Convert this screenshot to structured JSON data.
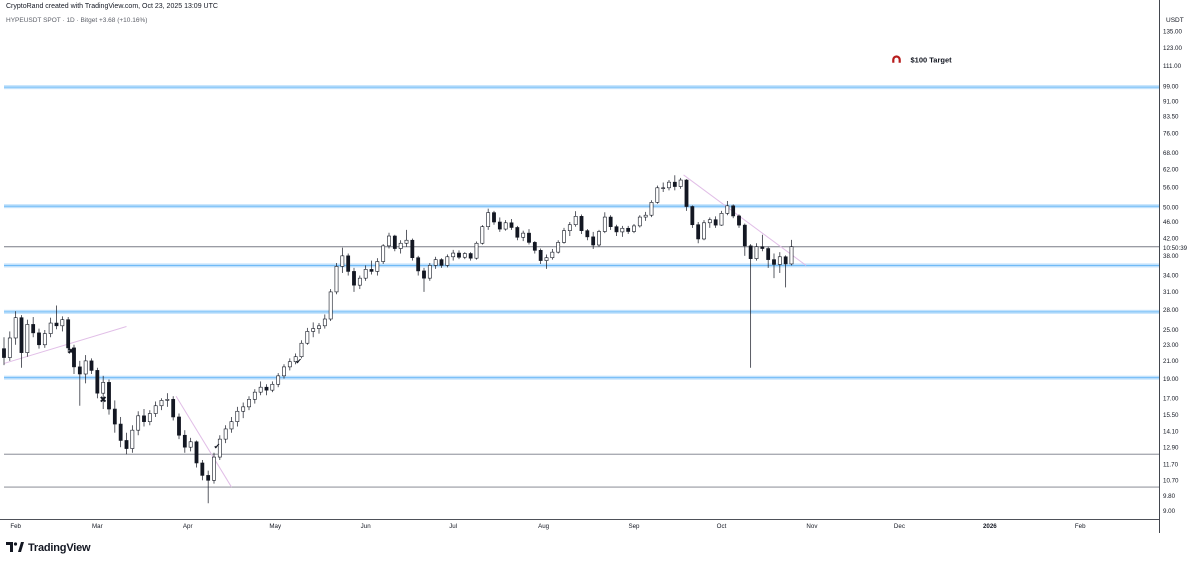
{
  "header": {
    "credit": "CryptoRand created with TradingView.com, Oct 23, 2025 13:09 UTC",
    "symbol": "HYPEUSDT SPOT · 1D · Bitget",
    "change": "+3.68 (+10.16%)"
  },
  "brand": {
    "name": "TradingView"
  },
  "colors": {
    "candle": "#131722",
    "support_band": "#90caf9",
    "trendline": "#e1bee7",
    "dark_line": "#787b86",
    "target_marker": "#b71c1c"
  },
  "chart_data": {
    "type": "candlestick",
    "currency": "USDT",
    "y_scale": "log",
    "ylim": [
      8.6,
      154
    ],
    "x_range": [
      "2025-01-28",
      "2026-02-28"
    ],
    "price_axis_ticks": [
      9.0,
      9.8,
      10.7,
      11.7,
      12.9,
      14.1,
      15.5,
      17.0,
      19.0,
      21.0,
      23.0,
      25.0,
      28.0,
      31.0,
      34.0,
      38.0,
      42.0,
      46.0,
      50.0,
      56.0,
      62.0,
      68.0,
      76.0,
      83.5,
      91.0,
      99.0,
      111.0,
      123.0,
      135.0
    ],
    "price_axis_labels": [
      "9.00",
      "9.80",
      "10.70",
      "11.70",
      "12.90",
      "14.10",
      "15.50",
      "17.00",
      "19.00",
      "21.00",
      "23.00",
      "25.00",
      "28.00",
      "31.00",
      "34.00",
      "38.00",
      "42.00",
      "46.00",
      "50.00",
      "56.00",
      "62.00",
      "68.00",
      "76.00",
      "83.50",
      "91.00",
      "99.00",
      "111.00",
      "123.00",
      "135.00"
    ],
    "time_axis": [
      {
        "label": "Feb",
        "date": "2025-02-01",
        "bold": false
      },
      {
        "label": "Mar",
        "date": "2025-03-01",
        "bold": false
      },
      {
        "label": "Apr",
        "date": "2025-04-01",
        "bold": false
      },
      {
        "label": "May",
        "date": "2025-05-01",
        "bold": false
      },
      {
        "label": "Jun",
        "date": "2025-06-01",
        "bold": false
      },
      {
        "label": "Jul",
        "date": "2025-07-01",
        "bold": false
      },
      {
        "label": "Aug",
        "date": "2025-08-01",
        "bold": false
      },
      {
        "label": "Sep",
        "date": "2025-09-01",
        "bold": false
      },
      {
        "label": "Oct",
        "date": "2025-10-01",
        "bold": false
      },
      {
        "label": "Nov",
        "date": "2025-11-01",
        "bold": false
      },
      {
        "label": "Dec",
        "date": "2025-12-01",
        "bold": false
      },
      {
        "label": "2026",
        "date": "2026-01-01",
        "bold": true
      },
      {
        "label": "Feb",
        "date": "2026-02-01",
        "bold": false
      }
    ],
    "last_price": {
      "value": 40.0,
      "label": "10:50:39"
    },
    "horizontal_levels": [
      {
        "price": 98.5,
        "style": "band"
      },
      {
        "price": 50.3,
        "style": "band"
      },
      {
        "price": 40.0,
        "style": "dark"
      },
      {
        "price": 36.0,
        "style": "band"
      },
      {
        "price": 27.7,
        "style": "band"
      },
      {
        "price": 19.1,
        "style": "band"
      },
      {
        "price": 12.4,
        "style": "dark"
      },
      {
        "price": 10.3,
        "style": "dark"
      }
    ],
    "trendlines": [
      {
        "from": [
          "2025-01-28",
          20.7
        ],
        "to": [
          "2025-03-11",
          25.5
        ],
        "color": "#e1bee7"
      },
      {
        "from": [
          "2025-03-28",
          17.2
        ],
        "to": [
          "2025-04-16",
          10.3
        ],
        "color": "#e1bee7"
      },
      {
        "from": [
          "2025-09-18",
          60.0
        ],
        "to": [
          "2025-10-30",
          36.0
        ],
        "color": "#e1bee7"
      }
    ],
    "annotations": [
      {
        "type": "cross",
        "date": "2025-02-20",
        "price": 22.2
      },
      {
        "type": "cross",
        "date": "2025-03-03",
        "price": 16.9
      },
      {
        "type": "check",
        "date": "2025-05-09",
        "price": 21.0
      },
      {
        "type": "check",
        "date": "2025-04-11",
        "price": 13.0
      },
      {
        "type": "target",
        "date": "2025-11-30",
        "price": 115,
        "text": "$100 Target"
      }
    ],
    "candles": [
      [
        "2025-01-28",
        22.5,
        24.0,
        20.5,
        21.4
      ],
      [
        "2025-01-30",
        21.4,
        24.8,
        21.0,
        23.9
      ],
      [
        "2025-02-01",
        23.9,
        27.8,
        23.0,
        26.8
      ],
      [
        "2025-02-03",
        26.8,
        27.2,
        20.2,
        22.0
      ],
      [
        "2025-02-05",
        22.0,
        26.5,
        21.5,
        25.8
      ],
      [
        "2025-02-07",
        25.8,
        26.9,
        24.0,
        24.6
      ],
      [
        "2025-02-09",
        24.6,
        25.2,
        22.5,
        23.0
      ],
      [
        "2025-02-11",
        23.0,
        25.0,
        22.6,
        24.5
      ],
      [
        "2025-02-13",
        24.5,
        26.8,
        24.0,
        26.0
      ],
      [
        "2025-02-15",
        26.0,
        28.7,
        25.1,
        25.6
      ],
      [
        "2025-02-17",
        25.6,
        27.0,
        24.8,
        26.5
      ],
      [
        "2025-02-19",
        26.5,
        26.9,
        22.0,
        22.6
      ],
      [
        "2025-02-21",
        22.6,
        23.0,
        19.5,
        20.3
      ],
      [
        "2025-02-23",
        20.3,
        21.0,
        16.3,
        19.5
      ],
      [
        "2025-02-25",
        19.5,
        21.7,
        18.5,
        21.0
      ],
      [
        "2025-02-27",
        21.0,
        21.3,
        19.5,
        19.9
      ],
      [
        "2025-03-01",
        19.9,
        20.2,
        17.0,
        17.5
      ],
      [
        "2025-03-03",
        17.5,
        19.3,
        16.0,
        18.6
      ],
      [
        "2025-03-05",
        18.6,
        18.9,
        15.5,
        16.0
      ],
      [
        "2025-03-07",
        16.0,
        16.8,
        14.0,
        14.7
      ],
      [
        "2025-03-09",
        14.7,
        15.3,
        12.9,
        13.4
      ],
      [
        "2025-03-11",
        13.4,
        14.0,
        12.4,
        12.8
      ],
      [
        "2025-03-13",
        12.8,
        14.6,
        12.5,
        14.2
      ],
      [
        "2025-03-15",
        14.2,
        15.8,
        13.8,
        15.4
      ],
      [
        "2025-03-17",
        15.4,
        16.0,
        14.5,
        14.9
      ],
      [
        "2025-03-19",
        14.9,
        15.9,
        14.6,
        15.6
      ],
      [
        "2025-03-21",
        15.6,
        16.7,
        15.3,
        16.3
      ],
      [
        "2025-03-23",
        16.3,
        17.0,
        15.9,
        16.8
      ],
      [
        "2025-03-25",
        16.8,
        17.5,
        16.2,
        16.9
      ],
      [
        "2025-03-27",
        16.9,
        17.2,
        15.0,
        15.3
      ],
      [
        "2025-03-29",
        15.3,
        15.6,
        13.5,
        13.8
      ],
      [
        "2025-03-31",
        13.8,
        14.2,
        12.5,
        12.9
      ],
      [
        "2025-04-02",
        12.9,
        13.6,
        12.6,
        13.3
      ],
      [
        "2025-04-04",
        13.3,
        13.4,
        11.5,
        11.8
      ],
      [
        "2025-04-06",
        11.8,
        12.0,
        10.7,
        11.0
      ],
      [
        "2025-04-08",
        11.0,
        11.3,
        9.4,
        10.7
      ],
      [
        "2025-04-10",
        10.7,
        12.5,
        10.5,
        12.2
      ],
      [
        "2025-04-12",
        12.2,
        13.8,
        12.0,
        13.5
      ],
      [
        "2025-04-14",
        13.5,
        14.6,
        13.2,
        14.3
      ],
      [
        "2025-04-16",
        14.3,
        15.3,
        14.0,
        14.9
      ],
      [
        "2025-04-18",
        14.9,
        16.2,
        14.5,
        15.8
      ],
      [
        "2025-04-20",
        15.8,
        16.6,
        15.2,
        16.2
      ],
      [
        "2025-04-22",
        16.2,
        17.2,
        15.9,
        16.9
      ],
      [
        "2025-04-24",
        16.9,
        17.9,
        16.5,
        17.6
      ],
      [
        "2025-04-26",
        17.6,
        18.7,
        17.3,
        18.1
      ],
      [
        "2025-04-28",
        18.1,
        18.4,
        17.3,
        17.8
      ],
      [
        "2025-04-30",
        17.8,
        18.7,
        17.6,
        18.4
      ],
      [
        "2025-05-02",
        18.4,
        19.6,
        18.1,
        19.3
      ],
      [
        "2025-05-04",
        19.3,
        20.6,
        19.0,
        20.3
      ],
      [
        "2025-05-06",
        20.3,
        21.3,
        19.9,
        20.9
      ],
      [
        "2025-05-08",
        20.9,
        21.9,
        20.6,
        21.5
      ],
      [
        "2025-05-10",
        21.5,
        23.6,
        21.3,
        23.2
      ],
      [
        "2025-05-12",
        23.2,
        25.3,
        23.0,
        24.8
      ],
      [
        "2025-05-14",
        24.8,
        26.1,
        24.0,
        25.2
      ],
      [
        "2025-05-16",
        25.2,
        26.0,
        24.5,
        25.6
      ],
      [
        "2025-05-18",
        25.6,
        27.3,
        25.2,
        26.6
      ],
      [
        "2025-05-20",
        26.6,
        31.5,
        26.3,
        31.0
      ],
      [
        "2025-05-22",
        31.0,
        36.5,
        30.6,
        35.8
      ],
      [
        "2025-05-24",
        35.8,
        39.8,
        34.5,
        38.0
      ],
      [
        "2025-05-26",
        38.0,
        38.5,
        34.0,
        34.8
      ],
      [
        "2025-05-28",
        34.8,
        35.5,
        31.0,
        32.2
      ],
      [
        "2025-05-30",
        32.2,
        34.0,
        31.5,
        33.5
      ],
      [
        "2025-06-01",
        33.5,
        36.0,
        33.0,
        35.2
      ],
      [
        "2025-06-03",
        35.2,
        37.0,
        34.2,
        34.8
      ],
      [
        "2025-06-05",
        34.8,
        37.5,
        34.0,
        36.8
      ],
      [
        "2025-06-07",
        36.8,
        40.6,
        36.3,
        40.2
      ],
      [
        "2025-06-09",
        40.2,
        43.3,
        39.6,
        42.5
      ],
      [
        "2025-06-11",
        42.5,
        42.8,
        39.0,
        39.6
      ],
      [
        "2025-06-13",
        39.6,
        41.5,
        38.5,
        40.8
      ],
      [
        "2025-06-15",
        40.8,
        44.0,
        40.0,
        41.5
      ],
      [
        "2025-06-17",
        41.5,
        41.9,
        37.0,
        37.6
      ],
      [
        "2025-06-19",
        37.6,
        38.0,
        34.0,
        34.9
      ],
      [
        "2025-06-21",
        34.9,
        35.5,
        31.0,
        33.5
      ],
      [
        "2025-06-23",
        33.5,
        36.5,
        33.0,
        36.0
      ],
      [
        "2025-06-25",
        36.0,
        37.8,
        35.3,
        37.2
      ],
      [
        "2025-06-27",
        37.2,
        37.5,
        35.5,
        36.0
      ],
      [
        "2025-06-29",
        36.0,
        38.3,
        35.6,
        37.8
      ],
      [
        "2025-07-01",
        37.8,
        39.3,
        37.0,
        38.6
      ],
      [
        "2025-07-03",
        38.6,
        39.2,
        37.3,
        37.7
      ],
      [
        "2025-07-05",
        37.7,
        38.8,
        37.3,
        38.5
      ],
      [
        "2025-07-07",
        38.5,
        38.8,
        37.0,
        37.5
      ],
      [
        "2025-07-09",
        37.5,
        41.2,
        37.2,
        40.8
      ],
      [
        "2025-07-11",
        40.8,
        45.2,
        40.5,
        44.8
      ],
      [
        "2025-07-13",
        44.8,
        49.6,
        44.0,
        48.5
      ],
      [
        "2025-07-15",
        48.5,
        49.0,
        45.3,
        46.0
      ],
      [
        "2025-07-17",
        46.0,
        47.2,
        43.5,
        44.2
      ],
      [
        "2025-07-19",
        44.2,
        46.5,
        43.8,
        45.8
      ],
      [
        "2025-07-21",
        45.8,
        46.8,
        44.0,
        44.6
      ],
      [
        "2025-07-23",
        44.6,
        45.0,
        41.5,
        42.2
      ],
      [
        "2025-07-25",
        42.2,
        43.8,
        41.3,
        43.2
      ],
      [
        "2025-07-27",
        43.2,
        44.2,
        40.5,
        41.0
      ],
      [
        "2025-07-29",
        41.0,
        41.3,
        38.5,
        39.2
      ],
      [
        "2025-07-31",
        39.2,
        39.6,
        36.3,
        37.0
      ],
      [
        "2025-08-02",
        37.0,
        38.3,
        35.3,
        37.6
      ],
      [
        "2025-08-04",
        37.6,
        39.5,
        37.2,
        38.8
      ],
      [
        "2025-08-06",
        38.8,
        41.5,
        38.5,
        41.0
      ],
      [
        "2025-08-08",
        41.0,
        44.5,
        40.7,
        43.8
      ],
      [
        "2025-08-10",
        43.8,
        46.0,
        42.5,
        45.3
      ],
      [
        "2025-08-12",
        45.3,
        48.9,
        44.8,
        47.5
      ],
      [
        "2025-08-14",
        47.5,
        48.0,
        43.0,
        43.8
      ],
      [
        "2025-08-16",
        43.8,
        44.2,
        41.5,
        42.3
      ],
      [
        "2025-08-18",
        42.3,
        43.5,
        39.5,
        40.4
      ],
      [
        "2025-08-20",
        40.4,
        44.0,
        40.0,
        43.6
      ],
      [
        "2025-08-22",
        43.6,
        48.6,
        43.2,
        47.3
      ],
      [
        "2025-08-24",
        47.3,
        47.8,
        44.0,
        44.8
      ],
      [
        "2025-08-26",
        44.8,
        45.3,
        42.5,
        43.5
      ],
      [
        "2025-08-28",
        43.5,
        45.0,
        42.3,
        44.4
      ],
      [
        "2025-08-30",
        44.4,
        45.0,
        43.0,
        43.6
      ],
      [
        "2025-09-01",
        43.6,
        45.5,
        43.2,
        45.0
      ],
      [
        "2025-09-03",
        45.0,
        47.8,
        44.6,
        47.3
      ],
      [
        "2025-09-05",
        47.3,
        48.7,
        46.3,
        47.8
      ],
      [
        "2025-09-07",
        47.8,
        52.0,
        47.3,
        51.4
      ],
      [
        "2025-09-09",
        51.4,
        56.5,
        51.0,
        55.8
      ],
      [
        "2025-09-11",
        55.8,
        57.5,
        54.5,
        55.8
      ],
      [
        "2025-09-13",
        55.8,
        58.3,
        55.0,
        57.6
      ],
      [
        "2025-09-15",
        57.6,
        59.9,
        55.0,
        56.2
      ],
      [
        "2025-09-17",
        56.2,
        59.0,
        55.5,
        58.3
      ],
      [
        "2025-09-19",
        58.3,
        58.6,
        49.0,
        50.2
      ],
      [
        "2025-09-21",
        50.2,
        50.5,
        44.5,
        45.3
      ],
      [
        "2025-09-23",
        45.3,
        46.0,
        40.8,
        41.8
      ],
      [
        "2025-09-25",
        41.8,
        46.5,
        41.5,
        45.8
      ],
      [
        "2025-09-27",
        45.8,
        47.2,
        44.5,
        46.6
      ],
      [
        "2025-09-29",
        46.6,
        47.5,
        44.5,
        45.2
      ],
      [
        "2025-10-01",
        45.2,
        49.0,
        45.0,
        48.3
      ],
      [
        "2025-10-03",
        48.3,
        51.8,
        47.8,
        50.4
      ],
      [
        "2025-10-05",
        50.4,
        50.8,
        47.0,
        47.6
      ],
      [
        "2025-10-07",
        47.6,
        48.0,
        44.5,
        45.2
      ],
      [
        "2025-10-09",
        45.2,
        45.6,
        38.0,
        40.2
      ],
      [
        "2025-10-11",
        40.2,
        40.6,
        20.2,
        37.4
      ],
      [
        "2025-10-13",
        37.4,
        40.8,
        37.0,
        40.0
      ],
      [
        "2025-10-15",
        40.0,
        42.8,
        39.0,
        39.6
      ],
      [
        "2025-10-17",
        39.6,
        40.0,
        35.5,
        37.2
      ],
      [
        "2025-10-19",
        37.2,
        38.5,
        33.5,
        36.2
      ],
      [
        "2025-10-21",
        36.2,
        38.8,
        34.5,
        37.8
      ],
      [
        "2025-10-23",
        37.8,
        38.1,
        31.8,
        36.3
      ],
      [
        "2025-10-25",
        36.3,
        41.6,
        36.0,
        40.0
      ]
    ]
  }
}
